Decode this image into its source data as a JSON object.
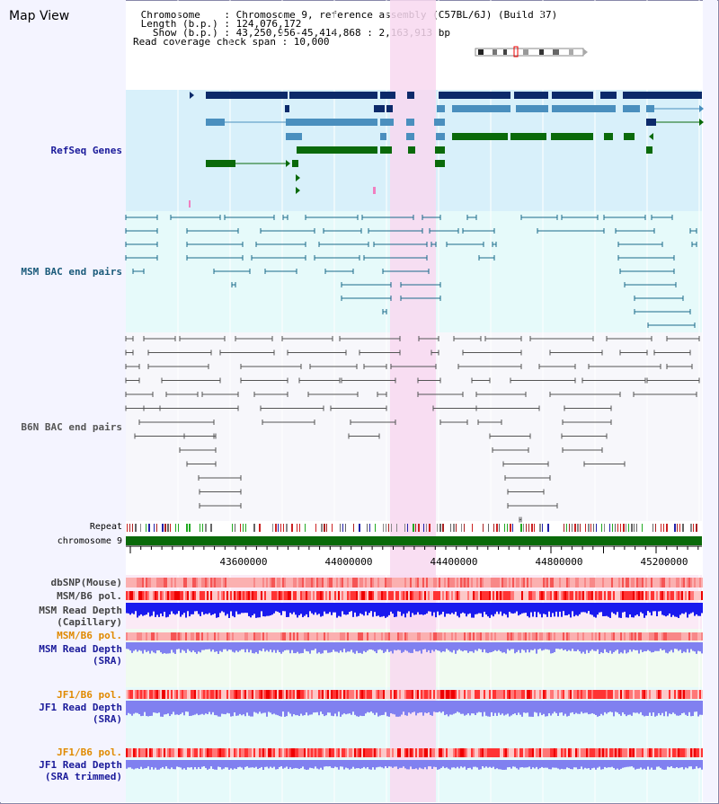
{
  "title": "Map View",
  "header": {
    "chromosome_label": " Chromosome    : Chromosome 9, reference assembly (C57BL/6J) (Build 37)",
    "length_label": " Length (b.p.) : 124,076,172",
    "show_label": "   Show (b.p.) : 43,250,956-45,414,868 : 2,163,913 bp",
    "coverage_label": "Read coverage check span : 10,000"
  },
  "tracks": {
    "refseq": "RefSeq Genes",
    "msm_bac": "MSM BAC end pairs",
    "b6n_bac": "B6N BAC end pairs",
    "repeat": "Repeat",
    "chromosome": "chromosome 9",
    "dbsnp": "dbSNP(Mouse)",
    "msm_b6_pol": "MSM/B6 pol.",
    "msm_depth_cap_1": "MSM Read Depth",
    "msm_depth_cap_2": "(Capillary)",
    "msm_b6_pol_2": "MSM/B6 pol.",
    "msm_depth_sra_1": "MSM Read Depth",
    "msm_depth_sra_2": "(SRA)",
    "jf1_b6_pol": "JF1/B6 pol.",
    "jf1_depth_sra_1": "JF1 Read Depth",
    "jf1_depth_sra_2": "(SRA)",
    "jf1_b6_pol_2": "JF1/B6 pol.",
    "jf1_depth_trim_1": "JF1 Read Depth",
    "jf1_depth_trim_2": "(SRA trimmed)"
  },
  "axis_ticks": [
    "43600000",
    "44000000",
    "44400000",
    "44800000",
    "45200000"
  ],
  "colors": {
    "refseq_bg": "#d8f0fa",
    "msm_bg": "#e6fafa",
    "b6n_bg": "#f7f7fb",
    "highlight": "#f8d8f0",
    "navy": "#0c2a6a",
    "steel": "#4a8fbe",
    "green": "#0a6a0a",
    "teal": "#1a6a8a",
    "gray": "#555555",
    "depth_blue": "#1a1aee",
    "depth_lav": "#8080f0",
    "label_orange": "#e08a00",
    "label_navy": "#1a1a9a"
  }
}
